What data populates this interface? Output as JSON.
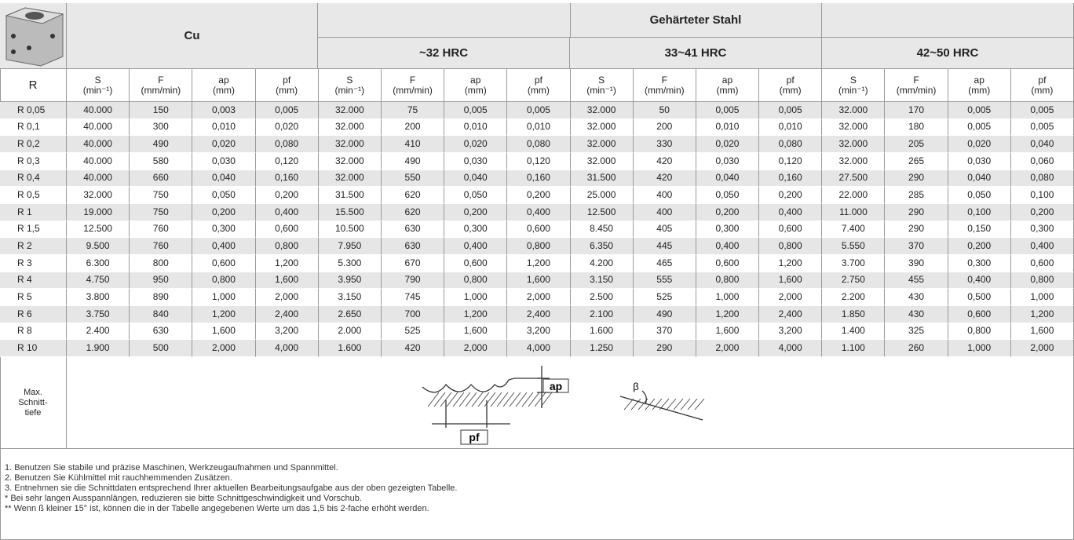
{
  "header": {
    "material_cu": "Cu",
    "material_steel": "Gehärteter Stahl",
    "hardness": [
      "~32 HRC",
      "33~41 HRC",
      "42~50 HRC"
    ]
  },
  "table": {
    "columns": [
      {
        "name": "R"
      },
      {
        "name": "S",
        "unit": "(min⁻¹)"
      },
      {
        "name": "F",
        "unit": "(mm/min)"
      },
      {
        "name": "ap",
        "unit": "(mm)"
      },
      {
        "name": "pf",
        "unit": "(mm)"
      },
      {
        "name": "S",
        "unit": "(min⁻¹)"
      },
      {
        "name": "F",
        "unit": "(mm/min)"
      },
      {
        "name": "ap",
        "unit": "(mm)"
      },
      {
        "name": "pf",
        "unit": "(mm)"
      },
      {
        "name": "S",
        "unit": "(min⁻¹)"
      },
      {
        "name": "F",
        "unit": "(mm/min)"
      },
      {
        "name": "ap",
        "unit": "(mm)"
      },
      {
        "name": "pf",
        "unit": "(mm)"
      },
      {
        "name": "S",
        "unit": "(min⁻¹)"
      },
      {
        "name": "F",
        "unit": "(mm/min)"
      },
      {
        "name": "ap",
        "unit": "(mm)"
      },
      {
        "name": "pf",
        "unit": "(mm)"
      }
    ],
    "rows": [
      [
        "R 0,05",
        "40.000",
        "150",
        "0,003",
        "0,005",
        "32.000",
        "75",
        "0,005",
        "0,005",
        "32.000",
        "50",
        "0,005",
        "0,005",
        "32.000",
        "170",
        "0,005",
        "0,005"
      ],
      [
        "R 0,1",
        "40.000",
        "300",
        "0,010",
        "0,020",
        "32.000",
        "200",
        "0,010",
        "0,010",
        "32.000",
        "200",
        "0,010",
        "0,010",
        "32.000",
        "180",
        "0,005",
        "0,005"
      ],
      [
        "R 0,2",
        "40.000",
        "490",
        "0,020",
        "0,080",
        "32.000",
        "410",
        "0,020",
        "0,080",
        "32.000",
        "330",
        "0,020",
        "0,080",
        "32.000",
        "205",
        "0,020",
        "0,040"
      ],
      [
        "R 0,3",
        "40.000",
        "580",
        "0,030",
        "0,120",
        "32.000",
        "490",
        "0,030",
        "0,120",
        "32.000",
        "420",
        "0,030",
        "0,120",
        "32.000",
        "265",
        "0,030",
        "0,060"
      ],
      [
        "R 0,4",
        "40.000",
        "660",
        "0,040",
        "0,160",
        "32.000",
        "550",
        "0,040",
        "0,160",
        "31.500",
        "420",
        "0,040",
        "0,160",
        "27.500",
        "290",
        "0,040",
        "0,080"
      ],
      [
        "R 0,5",
        "32.000",
        "750",
        "0,050",
        "0,200",
        "31.500",
        "620",
        "0,050",
        "0,200",
        "25.000",
        "400",
        "0,050",
        "0,200",
        "22.000",
        "285",
        "0,050",
        "0,100"
      ],
      [
        "R 1",
        "19.000",
        "750",
        "0,200",
        "0,400",
        "15.500",
        "620",
        "0,200",
        "0,400",
        "12.500",
        "400",
        "0,200",
        "0,400",
        "11.000",
        "290",
        "0,100",
        "0,200"
      ],
      [
        "R 1,5",
        "12.500",
        "760",
        "0,300",
        "0,600",
        "10.500",
        "630",
        "0,300",
        "0,600",
        "8.450",
        "405",
        "0,300",
        "0,600",
        "7.400",
        "290",
        "0,150",
        "0,300"
      ],
      [
        "R 2",
        "9.500",
        "760",
        "0,400",
        "0,800",
        "7.950",
        "630",
        "0,400",
        "0,800",
        "6.350",
        "445",
        "0,400",
        "0,800",
        "5.550",
        "370",
        "0,200",
        "0,400"
      ],
      [
        "R 3",
        "6.300",
        "800",
        "0,600",
        "1,200",
        "5.300",
        "670",
        "0,600",
        "1,200",
        "4.200",
        "465",
        "0,600",
        "1,200",
        "3.700",
        "390",
        "0,300",
        "0,600"
      ],
      [
        "R 4",
        "4.750",
        "950",
        "0,800",
        "1,600",
        "3.950",
        "790",
        "0,800",
        "1,600",
        "3.150",
        "555",
        "0,800",
        "1,600",
        "2.750",
        "455",
        "0,400",
        "0,800"
      ],
      [
        "R 5",
        "3.800",
        "890",
        "1,000",
        "2,000",
        "3.150",
        "745",
        "1,000",
        "2,000",
        "2.500",
        "525",
        "1,000",
        "2,000",
        "2.200",
        "430",
        "0,500",
        "1,000"
      ],
      [
        "R 6",
        "3.750",
        "840",
        "1,200",
        "2,400",
        "2.650",
        "700",
        "1,200",
        "2,400",
        "2.100",
        "490",
        "1,200",
        "2,400",
        "1.850",
        "430",
        "0,600",
        "1,200"
      ],
      [
        "R 8",
        "2.400",
        "630",
        "1,600",
        "3,200",
        "2.000",
        "525",
        "1,600",
        "3,200",
        "1.600",
        "370",
        "1,600",
        "3,200",
        "1.400",
        "325",
        "0,800",
        "1,600"
      ],
      [
        "R 10",
        "1.900",
        "500",
        "2,000",
        "4,000",
        "1.600",
        "420",
        "2,000",
        "4,000",
        "1.250",
        "290",
        "2,000",
        "4,000",
        "1.100",
        "260",
        "1,000",
        "2,000"
      ]
    ]
  },
  "diagram": {
    "row_label": [
      "Max.",
      "Schnitt-",
      "tiefe"
    ],
    "ap": "ap",
    "pf": "pf",
    "beta": "β"
  },
  "notes": [
    "1. Benutzen Sie stabile und präzise Maschinen, Werkzeugaufnahmen und Spannmittel.",
    "2. Benutzen Sie Kühlmittel mit rauchhemmenden Zusätzen.",
    "3. Entnehmen sie die Schnittdaten entsprechend Ihrer aktuellen Bearbeitungsaufgabe aus der oben gezeigten Tabelle.",
    "*  Bei sehr langen Ausspannlängen, reduzieren sie bitte Schnittgeschwindigkeit und Vorschub.",
    "** Wenn ß kleiner 15° ist, können die in der Tabelle angegebenen Werte um das 1,5 bis 2-fache erhöht werden."
  ]
}
